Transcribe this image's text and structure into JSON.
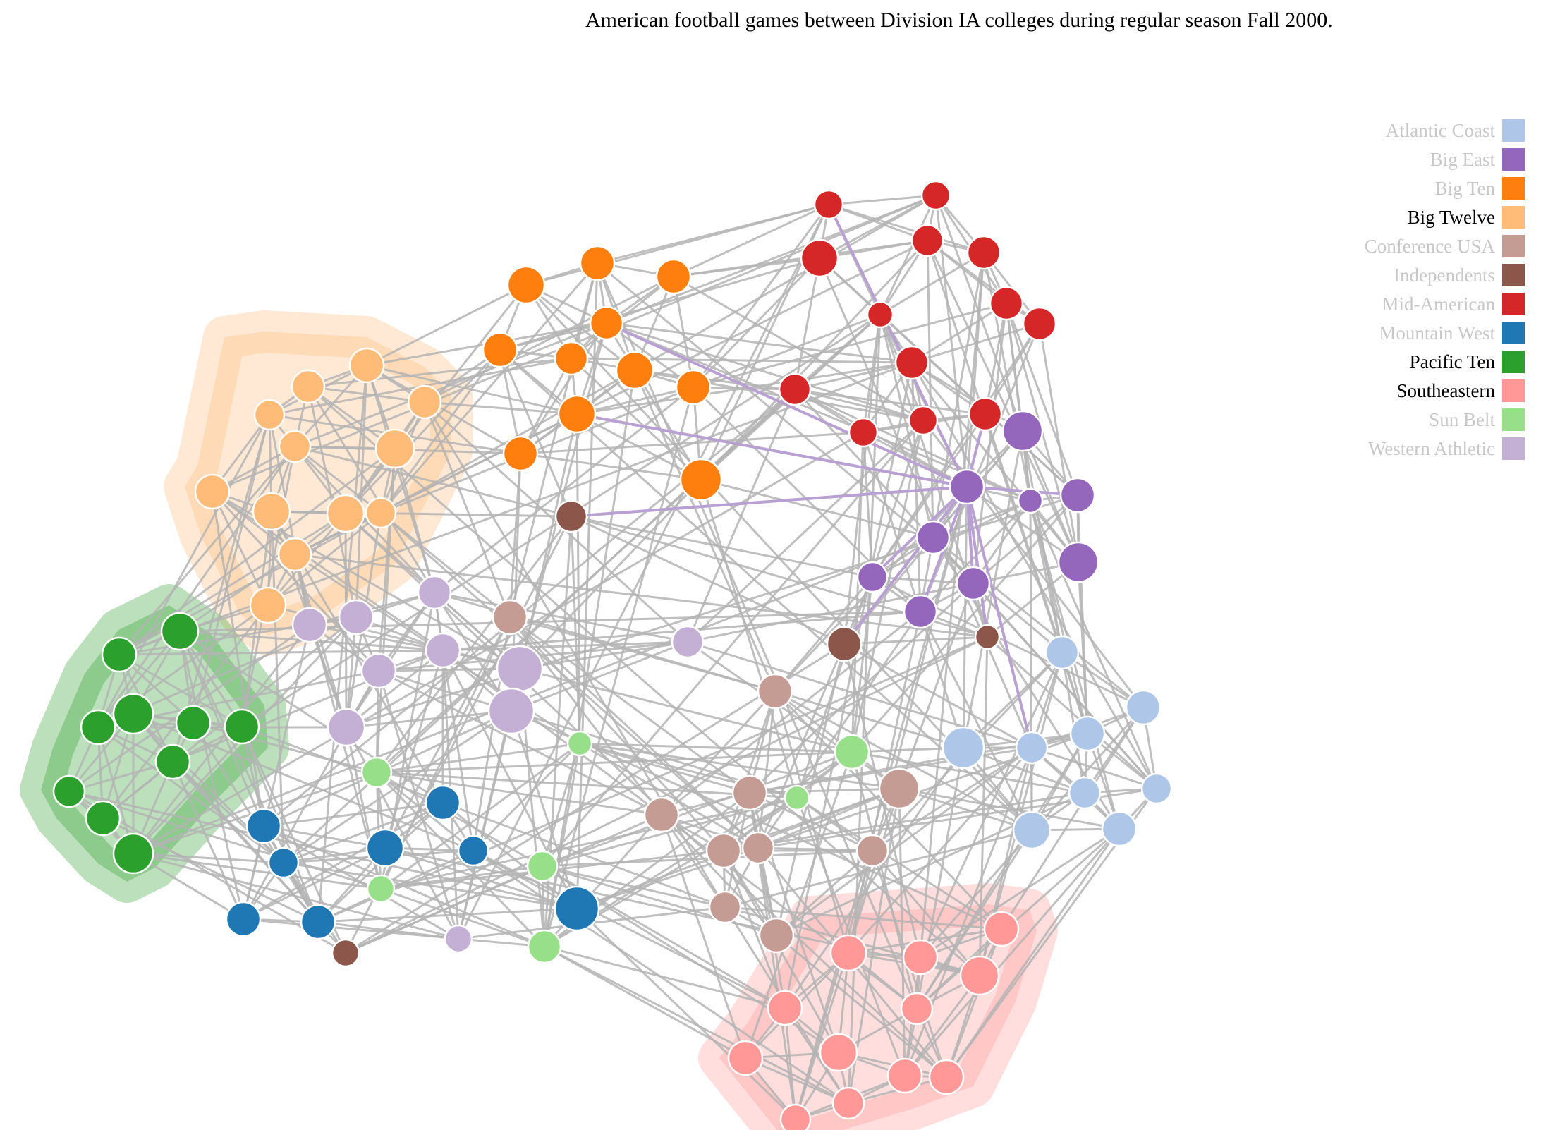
{
  "title": "American football games between Division IA colleges during regular season Fall 2000.",
  "colors": {
    "edge": "#b4b4b4",
    "edge_highlight": "#b9a0d3",
    "legend_active": "#000000",
    "legend_inactive": "#c8c8c8",
    "node_stroke": "#ffffff"
  },
  "legend": [
    {
      "name": "Atlantic Coast",
      "color": "#aec7e8",
      "active": false
    },
    {
      "name": "Big East",
      "color": "#9467bd",
      "active": false
    },
    {
      "name": "Big Ten",
      "color": "#ff7f0e",
      "active": false
    },
    {
      "name": "Big Twelve",
      "color": "#ffbb78",
      "active": true
    },
    {
      "name": "Conference USA",
      "color": "#c49c94",
      "active": false
    },
    {
      "name": "Independents",
      "color": "#8c564b",
      "active": false
    },
    {
      "name": "Mid-American",
      "color": "#d62728",
      "active": false
    },
    {
      "name": "Mountain West",
      "color": "#1f77b4",
      "active": false
    },
    {
      "name": "Pacific Ten",
      "color": "#2ca02c",
      "active": true
    },
    {
      "name": "Southeastern",
      "color": "#ff9896",
      "active": true
    },
    {
      "name": "Sun Belt",
      "color": "#98df8a",
      "active": false
    },
    {
      "name": "Western Athletic",
      "color": "#c5b0d5",
      "active": false
    }
  ],
  "highlighted_groups": [
    "Big Twelve",
    "Pacific Ten",
    "Southeastern"
  ]
}
